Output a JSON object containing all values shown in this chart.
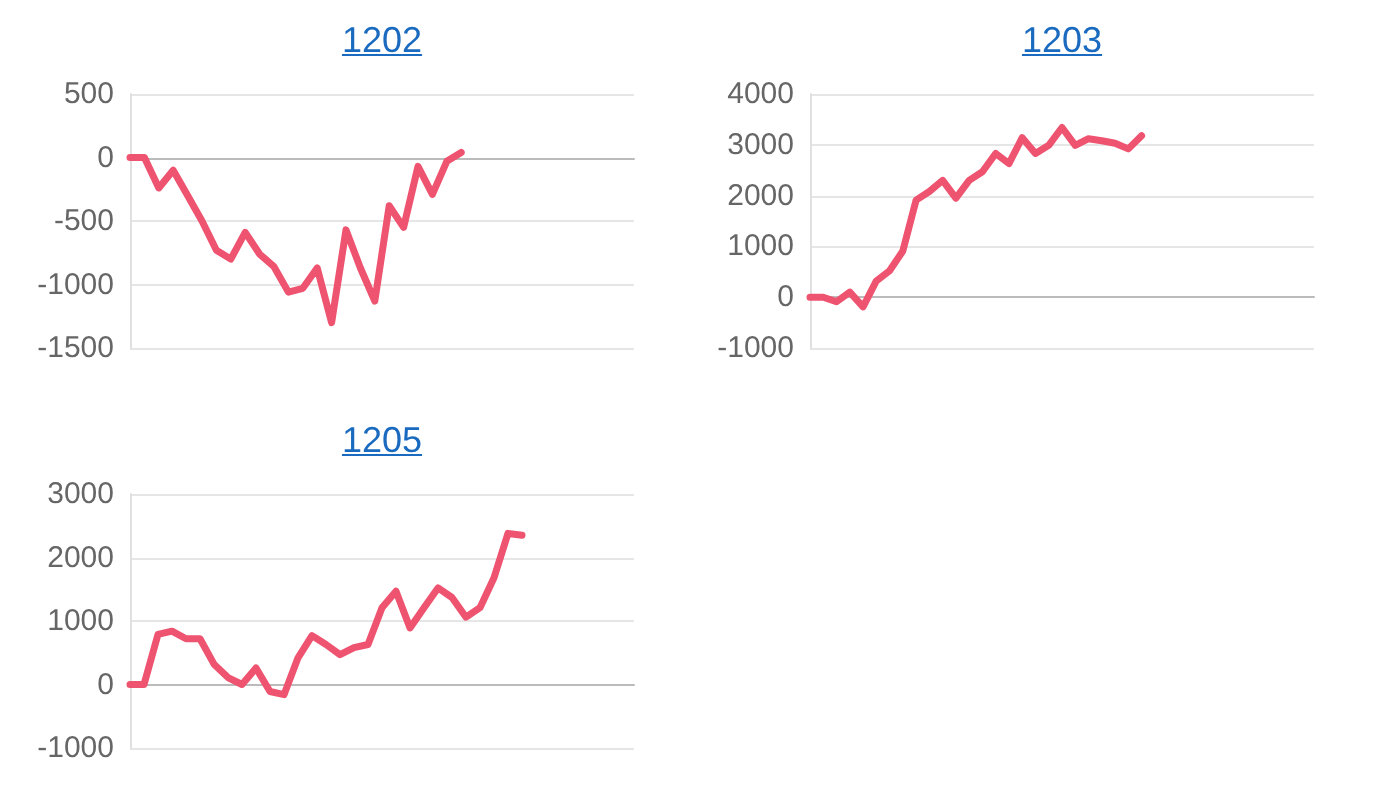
{
  "chart_data": [
    {
      "type": "line",
      "title": "1202",
      "categories": [
        null,
        null,
        null,
        null,
        null,
        null,
        null,
        null,
        null,
        null,
        null,
        null,
        null,
        null,
        null,
        null,
        null,
        null,
        null,
        null,
        null,
        null,
        null,
        null,
        null,
        null,
        null,
        null,
        null,
        null,
        null,
        null,
        null,
        null,
        null,
        null
      ],
      "series": [
        {
          "color": "#ee5370",
          "values": [
            0,
            0,
            -240,
            -100,
            -300,
            -500,
            -730,
            -800,
            -590,
            -760,
            -860,
            -1060,
            -1030,
            -870,
            -1300,
            -570,
            -870,
            -1130,
            -380,
            -550,
            -70,
            -290,
            -30,
            40,
            null,
            null,
            null,
            null,
            null,
            null,
            null,
            null,
            null,
            null,
            null,
            null
          ]
        }
      ],
      "ylim": [
        -1500,
        500
      ],
      "yticks": [
        -1500,
        -1000,
        -500,
        0,
        500
      ],
      "grid": "y",
      "tick_labels": "y",
      "line_style": "solid"
    },
    {
      "type": "line",
      "title": "1203",
      "categories": [
        null,
        null,
        null,
        null,
        null,
        null,
        null,
        null,
        null,
        null,
        null,
        null,
        null,
        null,
        null,
        null,
        null,
        null,
        null,
        null,
        null,
        null,
        null,
        null,
        null,
        null,
        null,
        null,
        null,
        null,
        null,
        null,
        null,
        null,
        null,
        null,
        null,
        null,
        null
      ],
      "series": [
        {
          "color": "#ee5370",
          "values": [
            0,
            0,
            -90,
            100,
            -190,
            320,
            520,
            910,
            1910,
            2080,
            2300,
            1950,
            2300,
            2470,
            2830,
            2630,
            3140,
            2830,
            2990,
            3340,
            2990,
            3120,
            3080,
            3030,
            2920,
            3180,
            null,
            null,
            null,
            null,
            null,
            null,
            null,
            null,
            null,
            null,
            null,
            null,
            null
          ]
        }
      ],
      "ylim": [
        -1000,
        4000
      ],
      "yticks": [
        -1000,
        0,
        1000,
        2000,
        3000,
        4000
      ],
      "grid": "y",
      "tick_labels": "y",
      "line_style": "solid"
    },
    {
      "type": "line",
      "title": "1205",
      "categories": [
        null,
        null,
        null,
        null,
        null,
        null,
        null,
        null,
        null,
        null,
        null,
        null,
        null,
        null,
        null,
        null,
        null,
        null,
        null,
        null,
        null,
        null,
        null,
        null,
        null,
        null,
        null,
        null,
        null,
        null,
        null,
        null,
        null,
        null,
        null,
        null,
        null
      ],
      "series": [
        {
          "color": "#ee5370",
          "values": [
            0,
            0,
            790,
            840,
            720,
            720,
            320,
            110,
            0,
            260,
            -110,
            -160,
            420,
            770,
            630,
            470,
            580,
            630,
            1210,
            1470,
            890,
            1210,
            1520,
            1370,
            1060,
            1210,
            1680,
            2380,
            2350,
            null,
            null,
            null,
            null,
            null,
            null,
            null,
            null
          ]
        }
      ],
      "ylim": [
        -1000,
        3000
      ],
      "yticks": [
        -1000,
        0,
        1000,
        2000,
        3000
      ],
      "grid": "y",
      "tick_labels": "y",
      "line_style": "solid"
    }
  ]
}
